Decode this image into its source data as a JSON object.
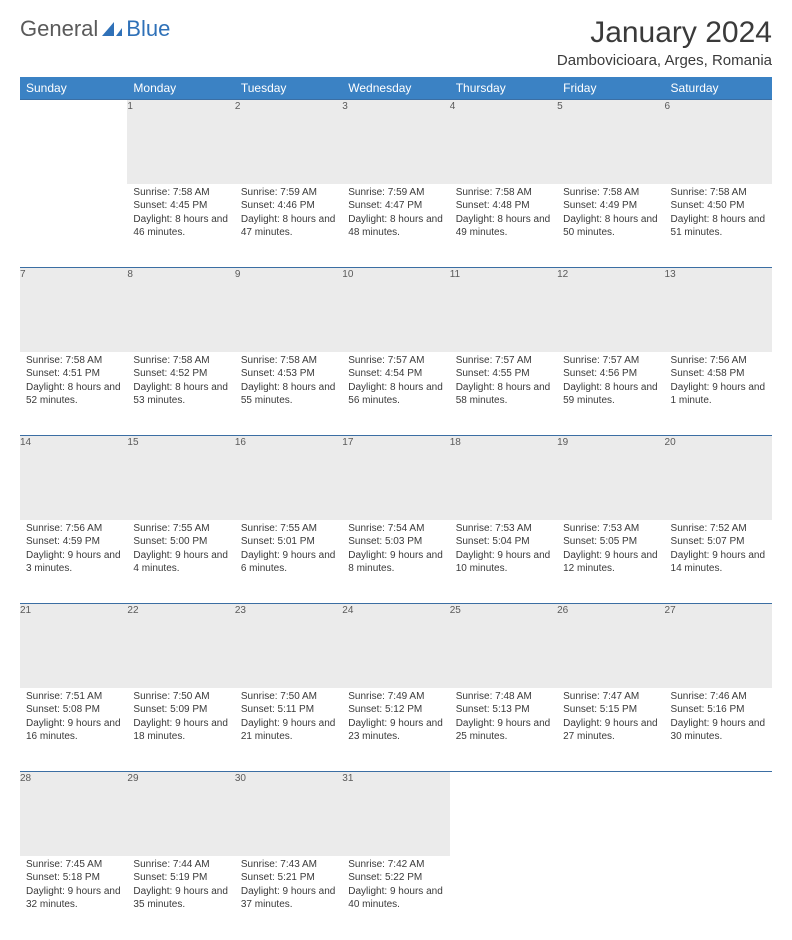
{
  "logo": {
    "text1": "General",
    "text2": "Blue"
  },
  "title": "January 2024",
  "location": "Dambovicioara, Arges, Romania",
  "header_bg": "#3b82c4",
  "header_fg": "#ffffff",
  "daynum_bg": "#ebebeb",
  "border_color": "#3b6ea3",
  "weekdays": [
    "Sunday",
    "Monday",
    "Tuesday",
    "Wednesday",
    "Thursday",
    "Friday",
    "Saturday"
  ],
  "weeks": [
    [
      null,
      {
        "n": "1",
        "sr": "Sunrise: 7:58 AM",
        "ss": "Sunset: 4:45 PM",
        "dl": "Daylight: 8 hours and 46 minutes."
      },
      {
        "n": "2",
        "sr": "Sunrise: 7:59 AM",
        "ss": "Sunset: 4:46 PM",
        "dl": "Daylight: 8 hours and 47 minutes."
      },
      {
        "n": "3",
        "sr": "Sunrise: 7:59 AM",
        "ss": "Sunset: 4:47 PM",
        "dl": "Daylight: 8 hours and 48 minutes."
      },
      {
        "n": "4",
        "sr": "Sunrise: 7:58 AM",
        "ss": "Sunset: 4:48 PM",
        "dl": "Daylight: 8 hours and 49 minutes."
      },
      {
        "n": "5",
        "sr": "Sunrise: 7:58 AM",
        "ss": "Sunset: 4:49 PM",
        "dl": "Daylight: 8 hours and 50 minutes."
      },
      {
        "n": "6",
        "sr": "Sunrise: 7:58 AM",
        "ss": "Sunset: 4:50 PM",
        "dl": "Daylight: 8 hours and 51 minutes."
      }
    ],
    [
      {
        "n": "7",
        "sr": "Sunrise: 7:58 AM",
        "ss": "Sunset: 4:51 PM",
        "dl": "Daylight: 8 hours and 52 minutes."
      },
      {
        "n": "8",
        "sr": "Sunrise: 7:58 AM",
        "ss": "Sunset: 4:52 PM",
        "dl": "Daylight: 8 hours and 53 minutes."
      },
      {
        "n": "9",
        "sr": "Sunrise: 7:58 AM",
        "ss": "Sunset: 4:53 PM",
        "dl": "Daylight: 8 hours and 55 minutes."
      },
      {
        "n": "10",
        "sr": "Sunrise: 7:57 AM",
        "ss": "Sunset: 4:54 PM",
        "dl": "Daylight: 8 hours and 56 minutes."
      },
      {
        "n": "11",
        "sr": "Sunrise: 7:57 AM",
        "ss": "Sunset: 4:55 PM",
        "dl": "Daylight: 8 hours and 58 minutes."
      },
      {
        "n": "12",
        "sr": "Sunrise: 7:57 AM",
        "ss": "Sunset: 4:56 PM",
        "dl": "Daylight: 8 hours and 59 minutes."
      },
      {
        "n": "13",
        "sr": "Sunrise: 7:56 AM",
        "ss": "Sunset: 4:58 PM",
        "dl": "Daylight: 9 hours and 1 minute."
      }
    ],
    [
      {
        "n": "14",
        "sr": "Sunrise: 7:56 AM",
        "ss": "Sunset: 4:59 PM",
        "dl": "Daylight: 9 hours and 3 minutes."
      },
      {
        "n": "15",
        "sr": "Sunrise: 7:55 AM",
        "ss": "Sunset: 5:00 PM",
        "dl": "Daylight: 9 hours and 4 minutes."
      },
      {
        "n": "16",
        "sr": "Sunrise: 7:55 AM",
        "ss": "Sunset: 5:01 PM",
        "dl": "Daylight: 9 hours and 6 minutes."
      },
      {
        "n": "17",
        "sr": "Sunrise: 7:54 AM",
        "ss": "Sunset: 5:03 PM",
        "dl": "Daylight: 9 hours and 8 minutes."
      },
      {
        "n": "18",
        "sr": "Sunrise: 7:53 AM",
        "ss": "Sunset: 5:04 PM",
        "dl": "Daylight: 9 hours and 10 minutes."
      },
      {
        "n": "19",
        "sr": "Sunrise: 7:53 AM",
        "ss": "Sunset: 5:05 PM",
        "dl": "Daylight: 9 hours and 12 minutes."
      },
      {
        "n": "20",
        "sr": "Sunrise: 7:52 AM",
        "ss": "Sunset: 5:07 PM",
        "dl": "Daylight: 9 hours and 14 minutes."
      }
    ],
    [
      {
        "n": "21",
        "sr": "Sunrise: 7:51 AM",
        "ss": "Sunset: 5:08 PM",
        "dl": "Daylight: 9 hours and 16 minutes."
      },
      {
        "n": "22",
        "sr": "Sunrise: 7:50 AM",
        "ss": "Sunset: 5:09 PM",
        "dl": "Daylight: 9 hours and 18 minutes."
      },
      {
        "n": "23",
        "sr": "Sunrise: 7:50 AM",
        "ss": "Sunset: 5:11 PM",
        "dl": "Daylight: 9 hours and 21 minutes."
      },
      {
        "n": "24",
        "sr": "Sunrise: 7:49 AM",
        "ss": "Sunset: 5:12 PM",
        "dl": "Daylight: 9 hours and 23 minutes."
      },
      {
        "n": "25",
        "sr": "Sunrise: 7:48 AM",
        "ss": "Sunset: 5:13 PM",
        "dl": "Daylight: 9 hours and 25 minutes."
      },
      {
        "n": "26",
        "sr": "Sunrise: 7:47 AM",
        "ss": "Sunset: 5:15 PM",
        "dl": "Daylight: 9 hours and 27 minutes."
      },
      {
        "n": "27",
        "sr": "Sunrise: 7:46 AM",
        "ss": "Sunset: 5:16 PM",
        "dl": "Daylight: 9 hours and 30 minutes."
      }
    ],
    [
      {
        "n": "28",
        "sr": "Sunrise: 7:45 AM",
        "ss": "Sunset: 5:18 PM",
        "dl": "Daylight: 9 hours and 32 minutes."
      },
      {
        "n": "29",
        "sr": "Sunrise: 7:44 AM",
        "ss": "Sunset: 5:19 PM",
        "dl": "Daylight: 9 hours and 35 minutes."
      },
      {
        "n": "30",
        "sr": "Sunrise: 7:43 AM",
        "ss": "Sunset: 5:21 PM",
        "dl": "Daylight: 9 hours and 37 minutes."
      },
      {
        "n": "31",
        "sr": "Sunrise: 7:42 AM",
        "ss": "Sunset: 5:22 PM",
        "dl": "Daylight: 9 hours and 40 minutes."
      },
      null,
      null,
      null
    ]
  ]
}
